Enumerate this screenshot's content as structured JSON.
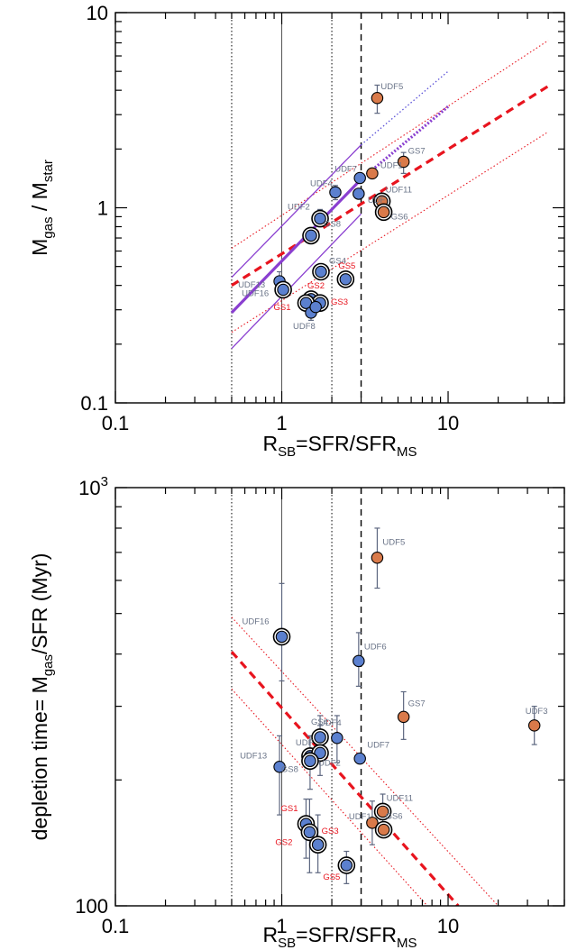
{
  "chart_data": [
    {
      "type": "scatter",
      "panel": "top",
      "xscale": "log",
      "yscale": "log",
      "xlim": [
        0.1,
        50
      ],
      "ylim": [
        0.1,
        10
      ],
      "xticks": [
        {
          "v": 0.1,
          "label": "0.1"
        },
        {
          "v": 1,
          "label": "1"
        },
        {
          "v": 10,
          "label": "10"
        }
      ],
      "yticks": [
        {
          "v": 0.1,
          "label": "0.1"
        },
        {
          "v": 1,
          "label": "1"
        },
        {
          "v": 10,
          "label": "10"
        }
      ],
      "xlabel": {
        "base": "R",
        "sub": "SB",
        "mid": "=SFR/SFR",
        "sub2": "MS"
      },
      "ylabel": {
        "base": "M",
        "sub": "gas",
        "mid": " / M",
        "sub2": "star"
      },
      "vlines": [
        {
          "x": 0.5,
          "style": "dotted"
        },
        {
          "x": 1,
          "style": "solid"
        },
        {
          "x": 2,
          "style": "dotted"
        },
        {
          "x": 3,
          "style": "dashed"
        }
      ],
      "fit_lines": [
        {
          "name": "",
          "style": "red-dashed",
          "color": "#e8141e",
          "points": [
            [
              0.5,
              0.4
            ],
            [
              40,
              4.2
            ]
          ]
        },
        {
          "name": "",
          "style": "red-dotted",
          "color": "#e8141e",
          "points": [
            [
              0.5,
              0.62
            ],
            [
              40,
              7.2
            ]
          ]
        },
        {
          "name": "",
          "style": "red-dotted",
          "color": "#e8141e",
          "points": [
            [
              0.5,
              0.23
            ],
            [
              40,
              2.45
            ]
          ]
        },
        {
          "name": "",
          "style": "purple-thick",
          "color": "#8a3fd0",
          "points": [
            [
              0.5,
              0.29
            ],
            [
              3,
              1.4
            ]
          ]
        },
        {
          "name": "",
          "style": "purple-dotted-thick",
          "color": "#8a3fd0",
          "points": [
            [
              3,
              1.4
            ],
            [
              10,
              3.3
            ]
          ]
        },
        {
          "name": "",
          "style": "purple-thin",
          "color": "#8a3fd0",
          "points": [
            [
              0.5,
              0.44
            ],
            [
              3,
              2.1
            ]
          ]
        },
        {
          "name": "",
          "style": "purple-thin",
          "color": "#8a3fd0",
          "points": [
            [
              0.5,
              0.19
            ],
            [
              3,
              0.93
            ]
          ]
        },
        {
          "name": "",
          "style": "blue-dotted",
          "color": "#5a50d8",
          "points": [
            [
              3,
              2.1
            ],
            [
              10,
              5.0
            ]
          ]
        }
      ],
      "points": [
        {
          "label": "UDF5",
          "x": 3.75,
          "y": 3.65,
          "err": [
            3.05,
            4.25
          ],
          "fill": "orange",
          "ring": false,
          "label_color": "gray",
          "lx": 4,
          "ly": -10
        },
        {
          "label": "GS7",
          "x": 5.4,
          "y": 1.72,
          "err": [
            1.5,
            1.92
          ],
          "fill": "orange",
          "ring": false,
          "label_color": "gray",
          "lx": 5,
          "ly": -9
        },
        {
          "label": "UDF1",
          "x": 3.5,
          "y": 1.5,
          "err": null,
          "fill": "orange",
          "ring": false,
          "label_color": "gray",
          "lx": 9,
          "ly": -6
        },
        {
          "label": "UDF7",
          "x": 2.95,
          "y": 1.42,
          "err": null,
          "fill": "blue",
          "ring": false,
          "label_color": "gray",
          "lx": -28,
          "ly": -7
        },
        {
          "label": "UDF4",
          "x": 2.1,
          "y": 1.2,
          "err": [
            1.1,
            1.3
          ],
          "fill": "blue",
          "ring": false,
          "label_color": "gray",
          "lx": -28,
          "ly": -7
        },
        {
          "label": "UDF",
          "x": 2.9,
          "y": 1.18,
          "err": null,
          "fill": "blue",
          "ring": false,
          "label_color": "gray",
          "lx": 10,
          "ly": 10
        },
        {
          "label": "UDF11",
          "x": 4.0,
          "y": 1.08,
          "err": null,
          "fill": "orange",
          "ring": true,
          "label_color": "gray",
          "lx": 4,
          "ly": -10
        },
        {
          "label": "GS6",
          "x": 4.1,
          "y": 0.95,
          "err": null,
          "fill": "orange",
          "ring": true,
          "label_color": "gray",
          "lx": 8,
          "ly": 8
        },
        {
          "label": "UDF2",
          "x": 1.7,
          "y": 0.88,
          "err": [
            0.8,
            0.98
          ],
          "fill": "blue",
          "ring": true,
          "label_color": "gray",
          "lx": -36,
          "ly": -10
        },
        {
          "label": "GS8",
          "x": 1.5,
          "y": 0.72,
          "err": null,
          "fill": "blue",
          "ring": true,
          "label_color": "gray",
          "lx": 14,
          "ly": -10
        },
        {
          "label": "GS4",
          "x": 1.72,
          "y": 0.47,
          "err": [
            0.43,
            0.51
          ],
          "fill": "blue",
          "ring": true,
          "label_color": "gray",
          "lx": 9,
          "ly": -9
        },
        {
          "label": "GS5",
          "x": 2.42,
          "y": 0.43,
          "err": null,
          "fill": "blue",
          "ring": true,
          "label_color": "red",
          "lx": -8,
          "ly": -12
        },
        {
          "label": "UDF13",
          "x": 0.97,
          "y": 0.42,
          "err": [
            0.38,
            0.47
          ],
          "fill": "blue",
          "ring": false,
          "label_color": "gray",
          "lx": -46,
          "ly": 7
        },
        {
          "label": "UDF16",
          "x": 1.02,
          "y": 0.38,
          "err": null,
          "fill": "blue",
          "ring": true,
          "label_color": "gray",
          "lx": -46,
          "ly": 7
        },
        {
          "label": "GS2",
          "x": 1.5,
          "y": 0.34,
          "err": null,
          "fill": "blue",
          "ring": true,
          "label_color": "red",
          "lx": -4,
          "ly": -12
        },
        {
          "label": "GS3",
          "x": 1.7,
          "y": 0.325,
          "err": null,
          "fill": "blue",
          "ring": true,
          "label_color": "red",
          "lx": 12,
          "ly": 2
        },
        {
          "label": "GS1",
          "x": 1.4,
          "y": 0.325,
          "err": null,
          "fill": "blue",
          "ring": true,
          "label_color": "red",
          "lx": -36,
          "ly": 8
        },
        {
          "label": "UDF8",
          "x": 1.5,
          "y": 0.29,
          "err": [
            0.265,
            0.315
          ],
          "fill": "blue",
          "ring": false,
          "label_color": "gray",
          "lx": -20,
          "ly": 18
        },
        {
          "label": "",
          "x": 1.6,
          "y": 0.31,
          "err": null,
          "fill": "blue",
          "ring": false,
          "label_color": "gray",
          "lx": 0,
          "ly": 0
        }
      ]
    },
    {
      "type": "scatter",
      "panel": "bottom",
      "xscale": "log",
      "yscale": "log",
      "xlim": [
        0.1,
        50
      ],
      "ylim": [
        100,
        1000
      ],
      "xticks": [
        {
          "v": 0.1,
          "label": "0.1"
        },
        {
          "v": 1,
          "label": "1"
        },
        {
          "v": 10,
          "label": "10"
        }
      ],
      "yticks": [
        {
          "v": 100,
          "label": "100"
        },
        {
          "v": 1000,
          "label": "10",
          "sup": "3"
        }
      ],
      "xlabel": {
        "base": "R",
        "sub": "SB",
        "mid": "=SFR/SFR",
        "sub2": "MS"
      },
      "ylabel": {
        "base": "depletion time= M",
        "sub": "gas",
        "mid": "/SFR (Myr)",
        "sub2": ""
      },
      "vlines": [
        {
          "x": 0.5,
          "style": "dotted"
        },
        {
          "x": 1,
          "style": "solid"
        },
        {
          "x": 2,
          "style": "dotted"
        },
        {
          "x": 3,
          "style": "dashed"
        }
      ],
      "fit_lines": [
        {
          "name": "",
          "style": "red-dashed",
          "color": "#e8141e",
          "points": [
            [
              0.5,
              405
            ],
            [
              11.5,
              100
            ]
          ]
        },
        {
          "name": "",
          "style": "red-dotted",
          "color": "#e8141e",
          "points": [
            [
              0.5,
              490
            ],
            [
              20,
              100
            ]
          ]
        },
        {
          "name": "",
          "style": "red-dotted",
          "color": "#e8141e",
          "points": [
            [
              0.5,
              330
            ],
            [
              7.5,
              100
            ]
          ]
        }
      ],
      "points": [
        {
          "label": "UDF5",
          "x": 3.75,
          "y": 680,
          "err": [
            575,
            800
          ],
          "fill": "orange",
          "ring": false,
          "label_color": "gray",
          "lx": 6,
          "ly": -14
        },
        {
          "label": "UDF16",
          "x": 1.0,
          "y": 440,
          "err": [
            345,
            590
          ],
          "fill": "blue",
          "ring": true,
          "label_color": "gray",
          "lx": -44,
          "ly": -14
        },
        {
          "label": "UDF6",
          "x": 2.9,
          "y": 385,
          "err": [
            335,
            450
          ],
          "fill": "blue",
          "ring": false,
          "label_color": "gray",
          "lx": 6,
          "ly": -13
        },
        {
          "label": "GS7",
          "x": 5.4,
          "y": 283,
          "err": [
            250,
            325
          ],
          "fill": "orange",
          "ring": false,
          "label_color": "gray",
          "lx": 5,
          "ly": -12
        },
        {
          "label": "UDF3",
          "x": 33,
          "y": 270,
          "err": [
            243,
            300
          ],
          "fill": "orange",
          "ring": false,
          "label_color": "gray",
          "lx": -10,
          "ly": -13
        },
        {
          "label": "UDF4",
          "x": 2.15,
          "y": 252,
          "err": [
            220,
            285
          ],
          "fill": "blue",
          "ring": false,
          "label_color": "gray",
          "lx": -20,
          "ly": -14
        },
        {
          "label": "GS4",
          "x": 1.7,
          "y": 253,
          "err": [
            225,
            285
          ],
          "fill": "blue",
          "ring": true,
          "label_color": "gray",
          "lx": -10,
          "ly": -14
        },
        {
          "label": "UDF7",
          "x": 2.95,
          "y": 225,
          "err": null,
          "fill": "blue",
          "ring": false,
          "label_color": "gray",
          "lx": 8,
          "ly": -12
        },
        {
          "label": "UDF13",
          "x": 0.97,
          "y": 215,
          "err": [
            165,
            255
          ],
          "fill": "blue",
          "ring": false,
          "label_color": "gray",
          "lx": -44,
          "ly": -9
        },
        {
          "label": "UDF",
          "x": 1.48,
          "y": 228,
          "err": null,
          "fill": "blue",
          "ring": true,
          "label_color": "gray",
          "lx": -16,
          "ly": -12
        },
        {
          "label": "UDF2",
          "x": 1.7,
          "y": 232,
          "err": [
            205,
            270
          ],
          "fill": "blue",
          "ring": true,
          "label_color": "gray",
          "lx": -2,
          "ly": 14
        },
        {
          "label": "GS8",
          "x": 1.48,
          "y": 222,
          "err": [
            190,
            255
          ],
          "fill": "blue",
          "ring": true,
          "label_color": "gray",
          "lx": -32,
          "ly": 12
        },
        {
          "label": "UDF11",
          "x": 4.05,
          "y": 168,
          "err": [
            152,
            185
          ],
          "fill": "orange",
          "ring": true,
          "label_color": "gray",
          "lx": 4,
          "ly": -12
        },
        {
          "label": "UDF1",
          "x": 3.5,
          "y": 158,
          "err": [
            140,
            178
          ],
          "fill": "orange",
          "ring": false,
          "label_color": "gray",
          "lx": -26,
          "ly": -4
        },
        {
          "label": "GS6",
          "x": 4.1,
          "y": 152,
          "err": null,
          "fill": "orange",
          "ring": true,
          "label_color": "gray",
          "lx": 2,
          "ly": -12
        },
        {
          "label": "GS1",
          "x": 1.4,
          "y": 157,
          "err": [
            130,
            180
          ],
          "fill": "blue",
          "ring": true,
          "label_color": "red",
          "lx": -28,
          "ly": -14
        },
        {
          "label": "GS2",
          "x": 1.47,
          "y": 150,
          "err": [
            120,
            180
          ],
          "fill": "blue",
          "ring": true,
          "label_color": "red",
          "lx": -38,
          "ly": 14
        },
        {
          "label": "GS3",
          "x": 1.65,
          "y": 140,
          "err": [
            120,
            165
          ],
          "fill": "blue",
          "ring": true,
          "label_color": "red",
          "lx": 4,
          "ly": -12
        },
        {
          "label": "GS5",
          "x": 2.45,
          "y": 125,
          "err": [
            113,
            135
          ],
          "fill": "blue",
          "ring": true,
          "label_color": "red",
          "lx": -26,
          "ly": 16
        }
      ]
    }
  ],
  "colors": {
    "blue_fill": "#5b80cf",
    "orange_fill": "#d97a4a",
    "label_gray": "#6a7488",
    "label_red": "#e8141e",
    "errorbar": "#5d6780"
  }
}
